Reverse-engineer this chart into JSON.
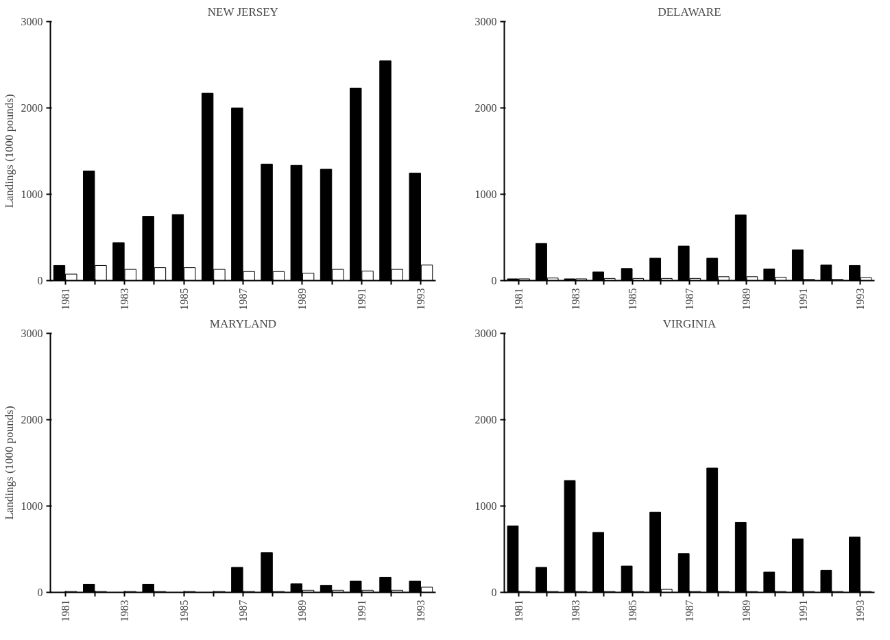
{
  "chart_data": [
    {
      "type": "bar",
      "title": "NEW JERSEY",
      "ylabel": "Landings (1000 pounds)",
      "categories": [
        "1981",
        null,
        "1983",
        null,
        "1985",
        null,
        "1987",
        null,
        "1989",
        null,
        "1991",
        null,
        "1993"
      ],
      "ylim": [
        0,
        3000
      ],
      "yticks": [
        0,
        1000,
        2000,
        3000
      ],
      "grid": false,
      "series": [
        {
          "color": "#000000",
          "values": [
            175,
            1270,
            440,
            745,
            765,
            2170,
            2000,
            1350,
            1335,
            1290,
            2230,
            2545,
            1245
          ]
        },
        {
          "color": "#ffffff",
          "values": [
            75,
            175,
            130,
            150,
            150,
            130,
            105,
            105,
            85,
            130,
            110,
            130,
            180
          ]
        }
      ]
    },
    {
      "type": "bar",
      "title": "DELAWARE",
      "categories": [
        "1981",
        null,
        "1983",
        null,
        "1985",
        null,
        "1987",
        null,
        "1989",
        null,
        "1991",
        null,
        "1993"
      ],
      "ylim": [
        0,
        3000
      ],
      "yticks": [
        0,
        1000,
        2000,
        3000
      ],
      "grid": false,
      "series": [
        {
          "color": "#000000",
          "values": [
            20,
            430,
            20,
            100,
            140,
            260,
            400,
            260,
            760,
            135,
            355,
            180,
            175
          ]
        },
        {
          "color": "#ffffff",
          "values": [
            20,
            30,
            20,
            25,
            25,
            25,
            25,
            45,
            45,
            40,
            15,
            15,
            35
          ]
        }
      ]
    },
    {
      "type": "bar",
      "title": "MARYLAND",
      "ylabel": "Landings (1000 pounds)",
      "categories": [
        "1981",
        null,
        "1983",
        null,
        "1985",
        null,
        "1987",
        null,
        "1989",
        null,
        "1991",
        null,
        "1993"
      ],
      "ylim": [
        0,
        3000
      ],
      "yticks": [
        0,
        1000,
        2000,
        3000
      ],
      "grid": false,
      "series": [
        {
          "color": "#000000",
          "values": [
            null,
            95,
            null,
            95,
            null,
            null,
            290,
            460,
            100,
            80,
            130,
            175,
            130
          ]
        },
        {
          "color": "#ffffff",
          "values": [
            10,
            10,
            10,
            10,
            10,
            10,
            10,
            10,
            25,
            25,
            25,
            25,
            60
          ]
        }
      ]
    },
    {
      "type": "bar",
      "title": "VIRGINIA",
      "categories": [
        "1981",
        null,
        "1983",
        null,
        "1985",
        null,
        "1987",
        null,
        "1989",
        null,
        "1991",
        null,
        "1993"
      ],
      "ylim": [
        0,
        3000
      ],
      "yticks": [
        0,
        1000,
        2000,
        3000
      ],
      "grid": false,
      "series": [
        {
          "color": "#000000",
          "values": [
            770,
            290,
            1295,
            695,
            305,
            930,
            450,
            1440,
            810,
            235,
            620,
            255,
            640
          ]
        },
        {
          "color": "#ffffff",
          "values": [
            10,
            10,
            10,
            10,
            10,
            35,
            10,
            10,
            10,
            10,
            10,
            10,
            10
          ]
        }
      ]
    }
  ]
}
